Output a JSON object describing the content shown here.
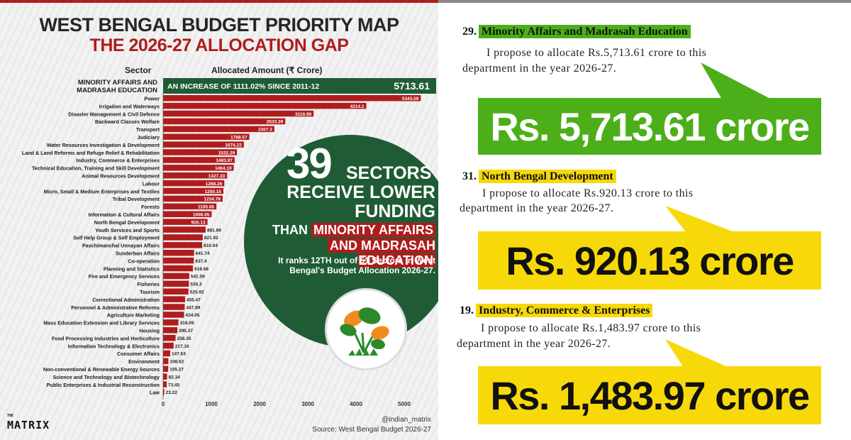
{
  "left_panel": {
    "title_line1": "WEST BENGAL BUDGET PRIORITY MAP",
    "title_line2": "THE 2026-27 ALLOCATION GAP",
    "col_sector": "Sector",
    "col_amount": "Allocated Amount (₹ Crore)",
    "highlight_label": "MINORITY AFFAIRS AND MADRASAH EDUCATION",
    "highlight_banner": "AN INCREASE OF 1111.02% SINCE 2011-12",
    "highlight_value": "5713.61",
    "callout": {
      "number": "39",
      "word1": "SECTORS",
      "line2": "RECEIVE LOWER",
      "line3": "FUNDING",
      "than": "THAN",
      "than_hl": "MINORITY AFFAIRS",
      "line5": "AND MADRASAH EDUCATION",
      "ranks": "It ranks 12TH out of 51 Sectors in West Bengal's Budget Allocation 2026-27."
    },
    "brand": "MATRIX",
    "brand_small": "THE",
    "handle": "@indian_matrix",
    "source": "Source: West Bengal Budget 2026-27",
    "colors": {
      "bar": "#b01c1c",
      "highlight_bg": "#1f5c35",
      "callout_bg": "#1f5c35"
    }
  },
  "chart_data": {
    "type": "bar",
    "orientation": "horizontal",
    "categories": [
      "Power",
      "Irrigation and Waterways",
      "Disaster Management & Civil Defence",
      "Backward Classes Welfare",
      "Transport",
      "Judiciary",
      "Water Resources Investigation & Development",
      "Land & Land Reforms and Refuge Relief & Rehabilitation",
      "Industry, Commerce & Enterprises",
      "Technical Education, Training and Skill Development",
      "Animal Resources Development",
      "Labour",
      "Micro, Small & Medium Enterprises and Textiles",
      "Tribal Development",
      "Forests",
      "Information & Cultural Affairs",
      "North Bengal Development",
      "Youth Services and Sports",
      "Self Help Group & Self Employment",
      "Paschimanchal Unnayan Affairs",
      "Sunderban Affairs",
      "Co-operation",
      "Planning and Statistics",
      "Fire and Emergency Services",
      "Fisheries",
      "Tourism",
      "Correctional Administration",
      "Personnel & Administrative Reforms",
      "Agriculture Marketing",
      "Mass Education Extension and Library Services",
      "Housing",
      "Food Processing Industries and Horticulture",
      "Information Technology & Electronics",
      "Consumer Affairs",
      "Environment",
      "Non-conventional & Renewable Energy Sources",
      "Science and Technology and Biotechnology",
      "Public Enterprises & Industrial Reconstruction",
      "Law"
    ],
    "values": [
      5343.59,
      4214.1,
      3119.99,
      2533.39,
      2307.3,
      1788.57,
      1674.22,
      1532.29,
      1483.97,
      1464.19,
      1327.33,
      1268.26,
      1250.15,
      1234.78,
      1105.65,
      1006.05,
      920.13,
      881.89,
      821.92,
      810.04,
      641.74,
      637.4,
      618.68,
      541.59,
      535.3,
      525.92,
      455.47,
      447.89,
      434.05,
      318.09,
      295.37,
      258.35,
      217.16,
      147.63,
      108.62,
      105.27,
      82.34,
      73.45,
      23.22
    ],
    "labels": [
      "5343.59",
      "4214.1",
      "3119.99",
      "2533.39",
      "2307.3",
      "1788.57",
      "1674.22",
      "1532.29",
      "1483.97",
      "1464.19",
      "1327.33",
      "1268.26",
      "1250.15",
      "1234.78",
      "1105.65",
      "1006.05",
      "920.13",
      "881.89",
      "821.92",
      "810.04",
      "641.74",
      "637.4",
      "618.68",
      "541.59",
      "535.3",
      "525.92",
      "455.47",
      "447.89",
      "434.05",
      "318.09",
      "295.37",
      "258.35",
      "217.16",
      "147.63",
      "108.62",
      "105.27",
      "82.34",
      "73.45",
      "23.22"
    ],
    "xticks": [
      "0",
      "1000",
      "2000",
      "3000",
      "4000",
      "5000"
    ],
    "xlim": [
      0,
      5713.61
    ],
    "grid": false
  },
  "right_panel": {
    "items": [
      {
        "number": "29.",
        "title": "Minority Affairs and Madrasah Education",
        "text1": "I propose to allocate Rs.5,713.61 crore to this",
        "text2": "department in the year 2026-27.",
        "bubble": "Rs. 5,713.61 crore",
        "color": "#4caf1a",
        "text_color": "#ffffff"
      },
      {
        "number": "31.",
        "title": "North Bengal Development",
        "text1": "I propose to allocate Rs.920.13 crore to this",
        "text2": "department in the year 2026-27.",
        "bubble": "Rs. 920.13 crore",
        "color": "#f7d90a",
        "text_color": "#111111"
      },
      {
        "number": "19.",
        "title": "Industry, Commerce & Enterprises",
        "text1": "I propose to allocate Rs.1,483.97 crore to this",
        "text2": "department in the year 2026-27.",
        "bubble": "Rs. 1,483.97 crore",
        "color": "#f7d90a",
        "text_color": "#111111"
      }
    ]
  }
}
